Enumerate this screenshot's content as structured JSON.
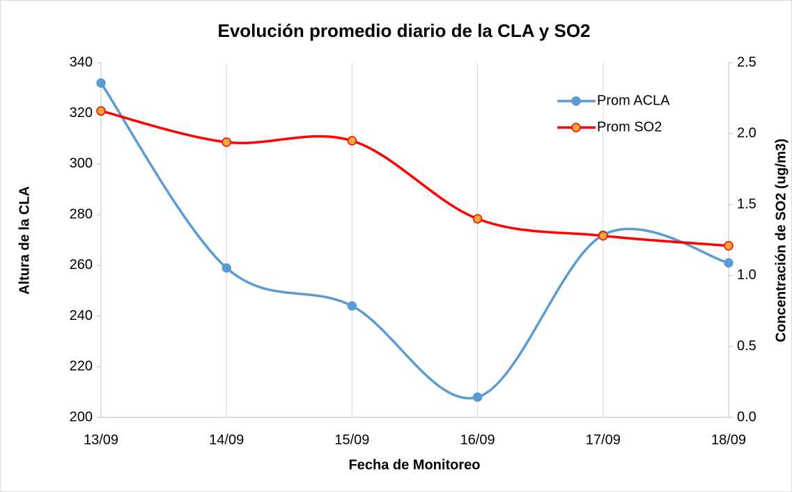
{
  "chart_data": {
    "type": "line",
    "title": "Evolución promedio diario de la CLA y SO2",
    "x_label": "Fecha de Monitoreo",
    "y_label": "Altura de la CLA",
    "y2_label": "Concentración de SO2 (ug/m3)",
    "categories": [
      "13/09",
      "14/09",
      "15/09",
      "16/09",
      "17/09",
      "18/09"
    ],
    "series": [
      {
        "name": "Prom ACLA",
        "color": "#5b9bd5",
        "values": [
          332,
          259,
          244,
          208,
          272,
          261
        ]
      },
      {
        "name": "Prom SO2",
        "color": "#ff0000",
        "marker_color": "#f4a83a",
        "axis": "y2",
        "values": [
          2.16,
          1.94,
          1.95,
          1.4,
          1.28,
          1.21
        ]
      }
    ],
    "ylim": [
      200,
      340
    ],
    "yticks": [
      200,
      220,
      240,
      260,
      280,
      300,
      320,
      340
    ],
    "y2lim": [
      0,
      2.5
    ],
    "y2ticks": [
      {
        "value": 0,
        "label": "0.0"
      },
      0.5,
      {
        "value": 1,
        "label": "1.0"
      },
      1.5,
      {
        "value": 2,
        "label": "2.0"
      },
      2.5
    ],
    "grid": "x",
    "smooth": true,
    "legend": "upper right"
  }
}
